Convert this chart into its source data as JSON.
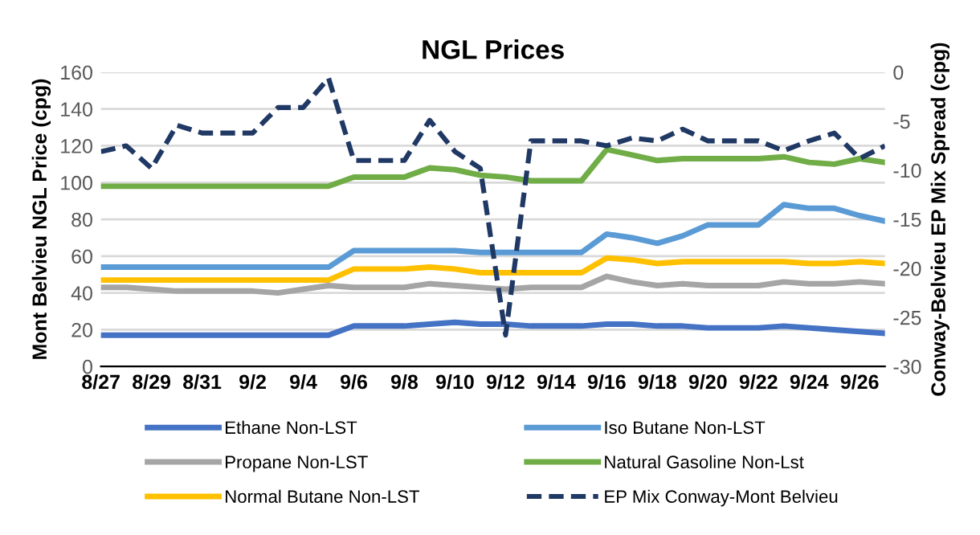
{
  "chart_data": {
    "type": "line",
    "title": "NGL Prices",
    "ylabel": "Mont Belvieu NGL Price (cpg)",
    "y2label": "Conway-Belvieu EP Mix Spread (cpg)",
    "categories": [
      "8/27",
      null,
      "8/29",
      null,
      "8/31",
      null,
      "9/2",
      null,
      "9/4",
      null,
      "9/6",
      null,
      "9/8",
      null,
      "9/10",
      null,
      "9/12",
      null,
      "9/14",
      null,
      "9/16",
      null,
      "9/18",
      null,
      "9/20",
      null,
      "9/22",
      null,
      "9/24",
      null,
      "9/26",
      null
    ],
    "series": [
      {
        "name": "Ethane Non-LST",
        "color": "#4472c4",
        "values": [
          17,
          17,
          17,
          17,
          17,
          17,
          17,
          17,
          17,
          17,
          22,
          22,
          22,
          23,
          24,
          23,
          23,
          22,
          22,
          22,
          23,
          23,
          22,
          22,
          21,
          21,
          21,
          22,
          21,
          20,
          19,
          18
        ]
      },
      {
        "name": "Propane Non-LST",
        "color": "#a5a5a5",
        "values": [
          43,
          43,
          42,
          41,
          41,
          41,
          41,
          40,
          42,
          44,
          43,
          43,
          43,
          45,
          44,
          43,
          42,
          43,
          43,
          43,
          49,
          46,
          44,
          45,
          44,
          44,
          44,
          46,
          45,
          45,
          46,
          45
        ]
      },
      {
        "name": "Normal Butane Non-LST",
        "color": "#ffc000",
        "values": [
          47,
          47,
          47,
          47,
          47,
          47,
          47,
          47,
          47,
          47,
          53,
          53,
          53,
          54,
          53,
          51,
          51,
          51,
          51,
          51,
          59,
          58,
          56,
          57,
          57,
          57,
          57,
          57,
          56,
          56,
          57,
          56
        ]
      },
      {
        "name": "Iso Butane Non-LST",
        "color": "#5b9bd5",
        "values": [
          54,
          54,
          54,
          54,
          54,
          54,
          54,
          54,
          54,
          54,
          63,
          63,
          63,
          63,
          63,
          62,
          62,
          62,
          62,
          62,
          72,
          70,
          67,
          71,
          77,
          77,
          77,
          88,
          86,
          86,
          82,
          79
        ]
      },
      {
        "name": "Natural Gasoline Non-Lst",
        "color": "#70ad47",
        "values": [
          98,
          98,
          98,
          98,
          98,
          98,
          98,
          98,
          98,
          98,
          103,
          103,
          103,
          108,
          107,
          104,
          103,
          101,
          101,
          101,
          118,
          115,
          112,
          113,
          113,
          113,
          113,
          114,
          111,
          110,
          113,
          111
        ]
      },
      {
        "name": "EP Mix Conway-Mont Belvieu",
        "color": "#203864",
        "axis": "y2",
        "line_style": "dashed",
        "values": [
          -8.1,
          -7.5,
          -9.8,
          -5.4,
          -6.2,
          -6.2,
          -6.2,
          -3.6,
          -3.6,
          -0.6,
          -9,
          -9,
          -9,
          -4.9,
          -8.1,
          -9.8,
          -26.8,
          -7,
          -7,
          -7,
          -7.5,
          -6.7,
          -7,
          -5.8,
          -7,
          -7,
          -7,
          -8,
          -7,
          -6.2,
          -8.8,
          -7.5
        ]
      }
    ],
    "ylim": [
      0,
      160
    ],
    "yticks": [
      0,
      20,
      40,
      60,
      80,
      100,
      120,
      140,
      160
    ],
    "y2lim": [
      -30,
      0
    ],
    "y2ticks": [
      {
        "value": -30,
        "label": "-30"
      },
      {
        "value": -25,
        "label": "-25"
      },
      {
        "value": -20,
        "label": "-20"
      },
      {
        "value": -15,
        "label": "-15"
      },
      {
        "value": -10,
        "label": "-10"
      },
      {
        "value": -5,
        "label": "-5"
      },
      0
    ],
    "grid": "y",
    "legend": "bottom",
    "marker": "none",
    "line_style": "solid"
  }
}
